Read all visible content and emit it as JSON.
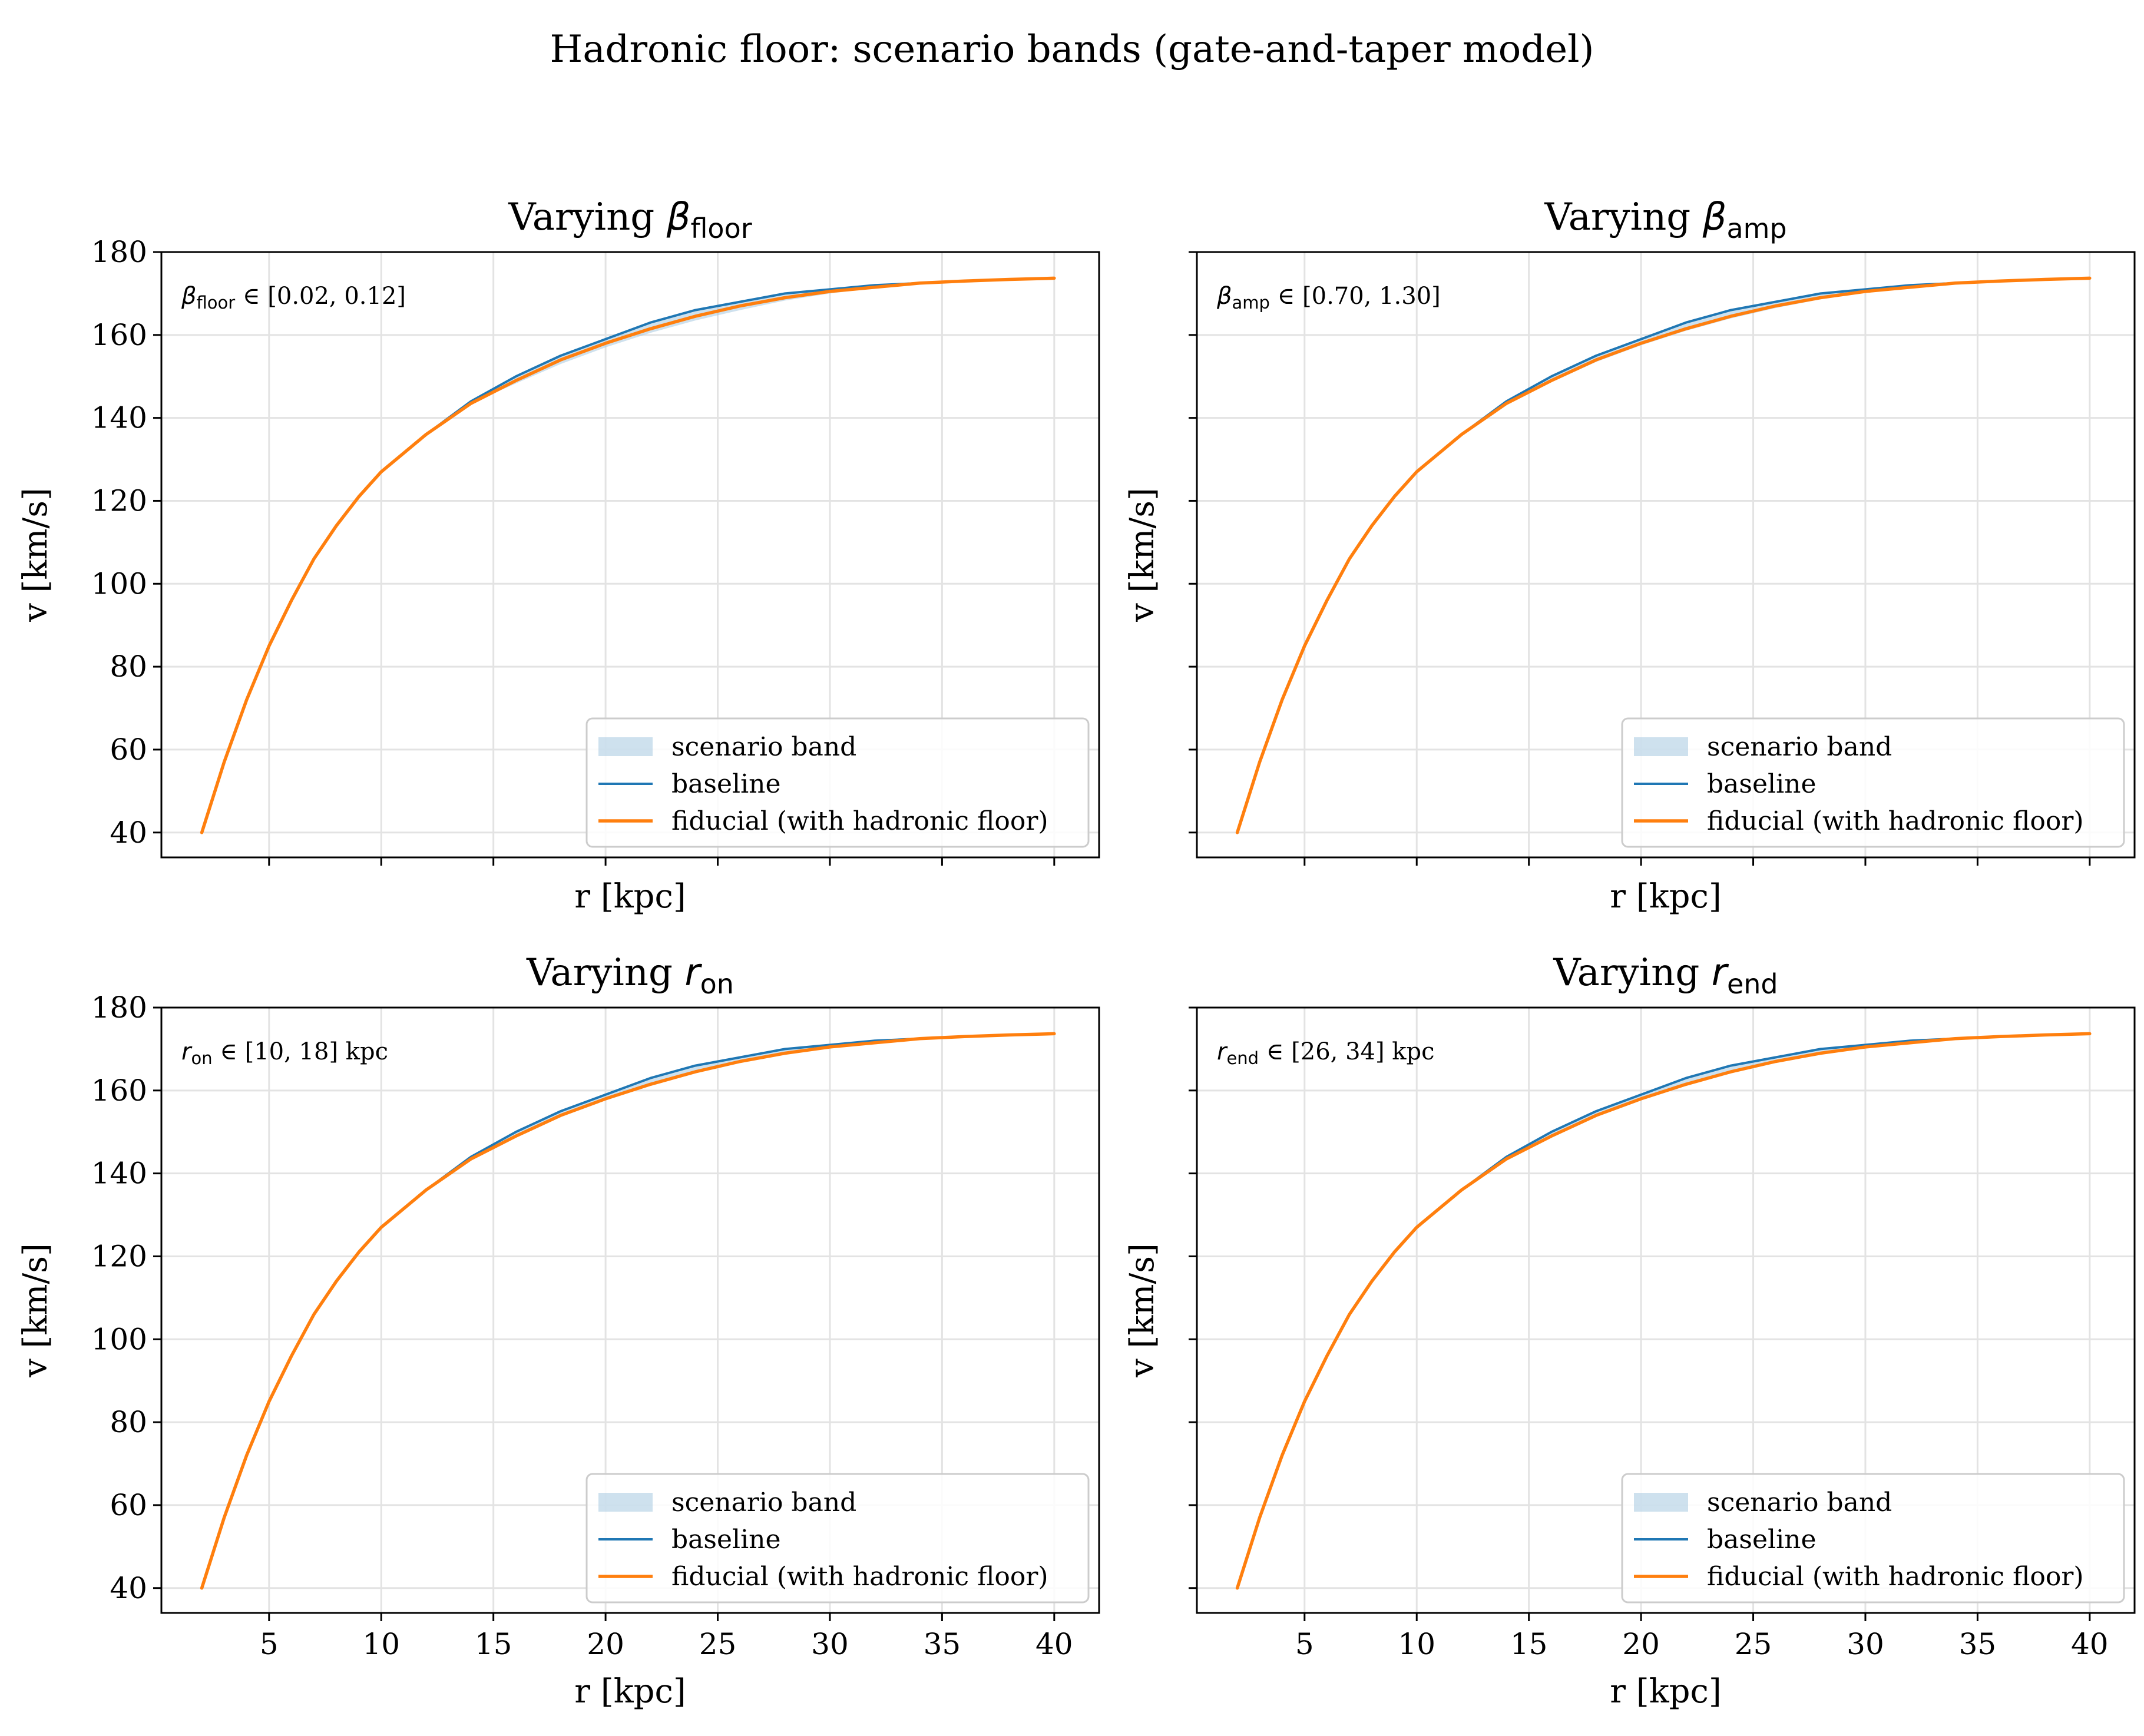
{
  "figure": {
    "suptitle": "Hadronic floor: scenario bands (gate-and-taper model)"
  },
  "chart_data": [
    {
      "type": "line",
      "title_prefix": "Varying ",
      "title_symbol": "β",
      "title_sub": "floor",
      "annotation": {
        "symbol": "β",
        "sub": "floor",
        "text": " ∈ [0.02, 0.12]"
      },
      "xlabel": "r [kpc]",
      "ylabel": "v [km/s]",
      "xlim": [
        0.2,
        42
      ],
      "ylim": [
        34,
        180
      ],
      "xticks": [
        5,
        10,
        15,
        20,
        25,
        30,
        35,
        40
      ],
      "yticks": [
        40,
        60,
        80,
        100,
        120,
        140,
        160,
        180
      ],
      "show_xticklabels": false,
      "show_yticklabels": true,
      "grid": true,
      "legend_position": "lower-right",
      "legend": [
        "scenario band",
        "baseline",
        "fiducial (with hadronic floor)"
      ],
      "series": [
        {
          "name": "baseline",
          "color": "#1f77b4",
          "x": [
            2,
            3,
            4,
            5,
            6,
            7,
            8,
            9,
            10,
            12,
            14,
            16,
            18,
            20,
            22,
            24,
            26,
            28,
            30,
            32,
            34,
            36,
            38,
            40
          ],
          "values": [
            40,
            57,
            72,
            85,
            96,
            106,
            114,
            121,
            127,
            136,
            144,
            150,
            155,
            159,
            163,
            166,
            168,
            170,
            171,
            172,
            172.5,
            173,
            173.4,
            173.7
          ]
        },
        {
          "name": "fiducial (with hadronic floor)",
          "color": "#ff7f0e",
          "x": [
            2,
            3,
            4,
            5,
            6,
            7,
            8,
            9,
            10,
            12,
            14,
            16,
            18,
            20,
            22,
            24,
            26,
            28,
            30,
            32,
            34,
            36,
            38,
            40
          ],
          "values": [
            40,
            57,
            72,
            85,
            96,
            106,
            114,
            121,
            127,
            136,
            143.5,
            149,
            154,
            158,
            161.5,
            164.5,
            167,
            169,
            170.5,
            171.5,
            172.5,
            173,
            173.4,
            173.7
          ]
        }
      ],
      "band": {
        "name": "scenario band",
        "color": "#a6c8e0",
        "x": [
          14,
          16,
          18,
          20,
          22,
          24,
          26,
          28,
          30,
          32,
          34,
          36
        ],
        "low": [
          143.5,
          148.3,
          153,
          157,
          160.5,
          163.5,
          166,
          168.3,
          170,
          171.3,
          172.4,
          173
        ],
        "high": [
          144,
          150,
          155,
          159,
          163,
          166,
          168,
          170,
          171,
          172,
          172.5,
          173
        ]
      }
    },
    {
      "type": "line",
      "title_prefix": "Varying ",
      "title_symbol": "β",
      "title_sub": "amp",
      "annotation": {
        "symbol": "β",
        "sub": "amp",
        "text": " ∈ [0.70, 1.30]"
      },
      "xlabel": "r [kpc]",
      "ylabel": "v [km/s]",
      "xlim": [
        0.2,
        42
      ],
      "ylim": [
        34,
        180
      ],
      "xticks": [
        5,
        10,
        15,
        20,
        25,
        30,
        35,
        40
      ],
      "yticks": [
        40,
        60,
        80,
        100,
        120,
        140,
        160,
        180
      ],
      "show_xticklabels": false,
      "show_yticklabels": false,
      "grid": true,
      "legend_position": "lower-right",
      "legend": [
        "scenario band",
        "baseline",
        "fiducial (with hadronic floor)"
      ],
      "series": [
        {
          "name": "baseline",
          "color": "#1f77b4",
          "x": [
            2,
            3,
            4,
            5,
            6,
            7,
            8,
            9,
            10,
            12,
            14,
            16,
            18,
            20,
            22,
            24,
            26,
            28,
            30,
            32,
            34,
            36,
            38,
            40
          ],
          "values": [
            40,
            57,
            72,
            85,
            96,
            106,
            114,
            121,
            127,
            136,
            144,
            150,
            155,
            159,
            163,
            166,
            168,
            170,
            171,
            172,
            172.5,
            173,
            173.4,
            173.7
          ]
        },
        {
          "name": "fiducial (with hadronic floor)",
          "color": "#ff7f0e",
          "x": [
            2,
            3,
            4,
            5,
            6,
            7,
            8,
            9,
            10,
            12,
            14,
            16,
            18,
            20,
            22,
            24,
            26,
            28,
            30,
            32,
            34,
            36,
            38,
            40
          ],
          "values": [
            40,
            57,
            72,
            85,
            96,
            106,
            114,
            121,
            127,
            136,
            143.5,
            149,
            154,
            158,
            161.5,
            164.5,
            167,
            169,
            170.5,
            171.5,
            172.5,
            173,
            173.4,
            173.7
          ]
        }
      ],
      "band": {
        "name": "scenario band",
        "color": "#a6c8e0",
        "x": [
          14,
          16,
          18,
          20,
          22,
          24,
          26,
          28,
          30,
          32,
          34,
          36
        ],
        "low": [
          143.3,
          148.6,
          153.5,
          157.5,
          161,
          164,
          166.5,
          168.6,
          170.2,
          171.4,
          172.4,
          173
        ],
        "high": [
          144,
          150,
          155,
          159,
          163,
          166,
          168,
          170,
          171,
          172,
          172.5,
          173
        ]
      }
    },
    {
      "type": "line",
      "title_prefix": "Varying ",
      "title_symbol": "r",
      "title_sub": "on",
      "annotation": {
        "symbol": "r",
        "sub": "on",
        "text": " ∈ [10, 18] kpc"
      },
      "xlabel": "r [kpc]",
      "ylabel": "v [km/s]",
      "xlim": [
        0.2,
        42
      ],
      "ylim": [
        34,
        180
      ],
      "xticks": [
        5,
        10,
        15,
        20,
        25,
        30,
        35,
        40
      ],
      "yticks": [
        40,
        60,
        80,
        100,
        120,
        140,
        160,
        180
      ],
      "show_xticklabels": true,
      "show_yticklabels": true,
      "grid": true,
      "legend_position": "lower-right",
      "legend": [
        "scenario band",
        "baseline",
        "fiducial (with hadronic floor)"
      ],
      "series": [
        {
          "name": "baseline",
          "color": "#1f77b4",
          "x": [
            2,
            3,
            4,
            5,
            6,
            7,
            8,
            9,
            10,
            12,
            14,
            16,
            18,
            20,
            22,
            24,
            26,
            28,
            30,
            32,
            34,
            36,
            38,
            40
          ],
          "values": [
            40,
            57,
            72,
            85,
            96,
            106,
            114,
            121,
            127,
            136,
            144,
            150,
            155,
            159,
            163,
            166,
            168,
            170,
            171,
            172,
            172.5,
            173,
            173.4,
            173.7
          ]
        },
        {
          "name": "fiducial (with hadronic floor)",
          "color": "#ff7f0e",
          "x": [
            2,
            3,
            4,
            5,
            6,
            7,
            8,
            9,
            10,
            12,
            14,
            16,
            18,
            20,
            22,
            24,
            26,
            28,
            30,
            32,
            34,
            36,
            38,
            40
          ],
          "values": [
            40,
            57,
            72,
            85,
            96,
            106,
            114,
            121,
            127,
            136,
            143.5,
            149,
            154,
            158,
            161.5,
            164.5,
            167,
            169,
            170.5,
            171.5,
            172.5,
            173,
            173.4,
            173.7
          ]
        }
      ],
      "band": {
        "name": "scenario band",
        "color": "#a6c8e0",
        "x": [
          14,
          16,
          18,
          20,
          22,
          24,
          26,
          28,
          30,
          32,
          34,
          36
        ],
        "low": [
          143.4,
          148.8,
          153.8,
          157.8,
          161.3,
          164.3,
          166.8,
          168.8,
          170.4,
          171.5,
          172.5,
          173
        ],
        "high": [
          144,
          150,
          155,
          159,
          163,
          166,
          168,
          170,
          171,
          172,
          172.5,
          173
        ]
      }
    },
    {
      "type": "line",
      "title_prefix": "Varying ",
      "title_symbol": "r",
      "title_sub": "end",
      "annotation": {
        "symbol": "r",
        "sub": "end",
        "text": " ∈ [26, 34] kpc"
      },
      "xlabel": "r [kpc]",
      "ylabel": "v [km/s]",
      "xlim": [
        0.2,
        42
      ],
      "ylim": [
        34,
        180
      ],
      "xticks": [
        5,
        10,
        15,
        20,
        25,
        30,
        35,
        40
      ],
      "yticks": [
        40,
        60,
        80,
        100,
        120,
        140,
        160,
        180
      ],
      "show_xticklabels": true,
      "show_yticklabels": false,
      "grid": true,
      "legend_position": "lower-right",
      "legend": [
        "scenario band",
        "baseline",
        "fiducial (with hadronic floor)"
      ],
      "series": [
        {
          "name": "baseline",
          "color": "#1f77b4",
          "x": [
            2,
            3,
            4,
            5,
            6,
            7,
            8,
            9,
            10,
            12,
            14,
            16,
            18,
            20,
            22,
            24,
            26,
            28,
            30,
            32,
            34,
            36,
            38,
            40
          ],
          "values": [
            40,
            57,
            72,
            85,
            96,
            106,
            114,
            121,
            127,
            136,
            144,
            150,
            155,
            159,
            163,
            166,
            168,
            170,
            171,
            172,
            172.5,
            173,
            173.4,
            173.7
          ]
        },
        {
          "name": "fiducial (with hadronic floor)",
          "color": "#ff7f0e",
          "x": [
            2,
            3,
            4,
            5,
            6,
            7,
            8,
            9,
            10,
            12,
            14,
            16,
            18,
            20,
            22,
            24,
            26,
            28,
            30,
            32,
            34,
            36,
            38,
            40
          ],
          "values": [
            40,
            57,
            72,
            85,
            96,
            106,
            114,
            121,
            127,
            136,
            143.5,
            149,
            154,
            158,
            161.5,
            164.5,
            167,
            169,
            170.5,
            171.5,
            172.5,
            173,
            173.4,
            173.7
          ]
        }
      ],
      "band": {
        "name": "scenario band",
        "color": "#a6c8e0",
        "x": [
          14,
          16,
          18,
          20,
          22,
          24,
          26,
          28,
          30,
          32,
          34,
          36
        ],
        "low": [
          143.5,
          149,
          154,
          158,
          161.5,
          164.4,
          166.7,
          168.7,
          170.2,
          171.4,
          172.4,
          173
        ],
        "high": [
          144,
          150,
          155,
          159,
          163,
          166,
          168,
          170,
          171,
          172,
          172.5,
          173
        ]
      }
    }
  ]
}
